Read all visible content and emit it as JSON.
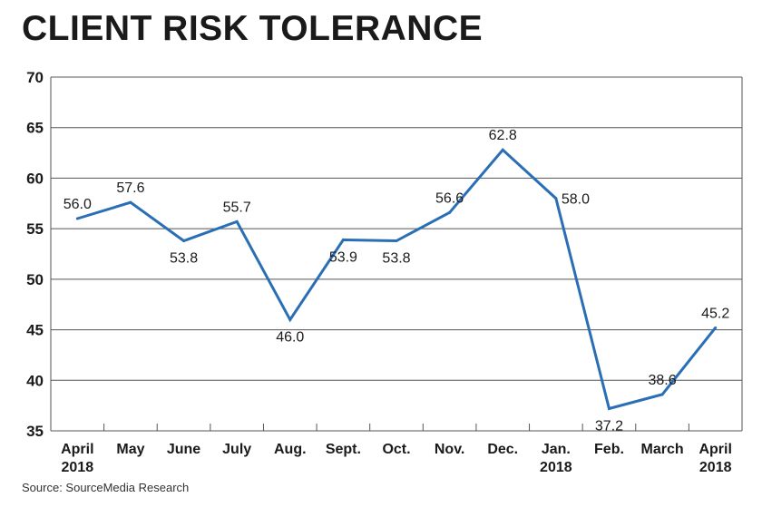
{
  "chart_data": {
    "type": "line",
    "title": "CLIENT RISK TOLERANCE",
    "source": "Source: SourceMedia Research",
    "categories": [
      [
        "April",
        "2018"
      ],
      [
        "May"
      ],
      [
        "June"
      ],
      [
        "July"
      ],
      [
        "Aug."
      ],
      [
        "Sept."
      ],
      [
        "Oct."
      ],
      [
        "Nov."
      ],
      [
        "Dec."
      ],
      [
        "Jan.",
        "2018"
      ],
      [
        "Feb."
      ],
      [
        "March"
      ],
      [
        "April",
        "2018"
      ]
    ],
    "values": [
      56.0,
      57.6,
      53.8,
      55.7,
      46.0,
      53.9,
      53.8,
      56.6,
      62.8,
      58.0,
      37.2,
      38.6,
      45.2
    ],
    "data_labels": [
      "56.0",
      "57.6",
      "53.8",
      "55.7",
      "46.0",
      "53.9",
      "53.8",
      "56.6",
      "62.8",
      "58.0",
      "37.2",
      "38.6",
      "45.2"
    ],
    "label_positions": [
      "above",
      "above",
      "below",
      "above",
      "below",
      "below",
      "below",
      "above",
      "above",
      "right",
      "below",
      "above",
      "above"
    ],
    "ylim": [
      35,
      70
    ],
    "yticks": [
      35,
      40,
      45,
      50,
      55,
      60,
      65,
      70
    ],
    "grid": true,
    "colors": {
      "line": "#2a6fb5",
      "grid": "#555555",
      "text": "#1a1a1a"
    }
  }
}
